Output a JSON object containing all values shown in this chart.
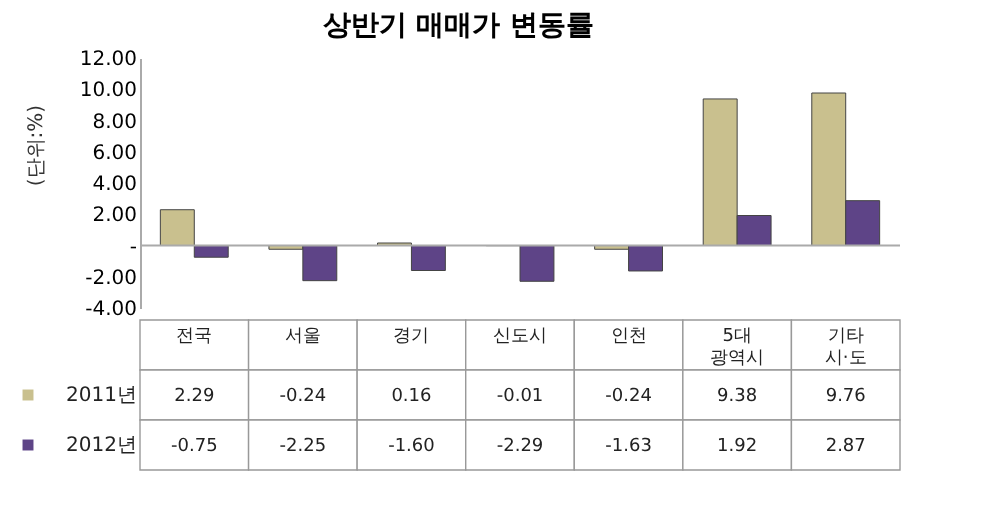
{
  "chart_data": {
    "type": "bar",
    "title": "상반기 매매가 변동률",
    "ylabel": "(단위:%)",
    "categories": [
      "전국",
      "서울",
      "경기",
      "신도시",
      "인천",
      "5대 광역시",
      "기타 시·도"
    ],
    "series": [
      {
        "name": "2011년",
        "color": "#c9c08e",
        "values": [
          2.29,
          -0.24,
          0.16,
          -0.01,
          -0.24,
          9.38,
          9.76
        ],
        "value_labels": [
          "2.29",
          "-0.24",
          "0.16",
          "-0.01",
          "-0.24",
          "9.38",
          "9.76"
        ]
      },
      {
        "name": "2012년",
        "color": "#5e4487",
        "values": [
          -0.75,
          -2.25,
          -1.6,
          -2.29,
          -1.63,
          1.92,
          2.87
        ],
        "value_labels": [
          "-0.75",
          "-2.25",
          "-1.60",
          "-2.29",
          "-1.63",
          "1.92",
          "2.87"
        ]
      }
    ],
    "ylim": [
      -4,
      12
    ],
    "yticks": [
      {
        "value": -4,
        "label": "-4.00"
      },
      {
        "value": -2,
        "label": "-2.00"
      },
      {
        "value": 0,
        "label": "-"
      },
      {
        "value": 2,
        "label": "2.00"
      },
      {
        "value": 4,
        "label": "4.00"
      },
      {
        "value": 6,
        "label": "6.00"
      },
      {
        "value": 8,
        "label": "8.00"
      },
      {
        "value": 10,
        "label": "10.00"
      },
      {
        "value": 12,
        "label": "12.00"
      }
    ],
    "ref_lines": [
      {
        "axis": "y",
        "value": 0,
        "color": "#aaaaaa"
      }
    ],
    "grid": false,
    "legend": "bottom left"
  }
}
